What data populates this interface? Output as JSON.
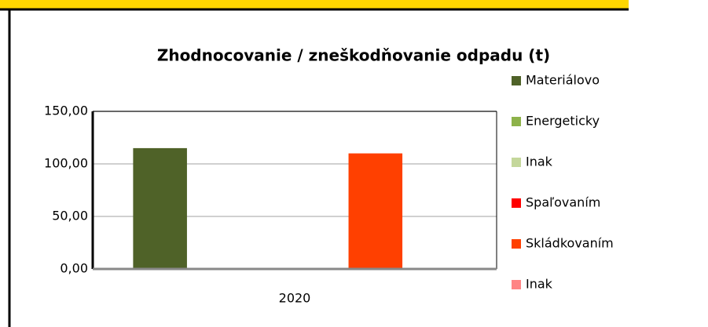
{
  "chart_data": {
    "type": "bar",
    "title": "Zhodnocovanie  / zneškodňovanie odpadu (t)",
    "categories": [
      "2020"
    ],
    "series": [
      {
        "name": "Materiálovo",
        "color": "#4f6228",
        "values": [
          115
        ]
      },
      {
        "name": "Energeticky",
        "color": "#8db24a",
        "values": [
          0
        ]
      },
      {
        "name": "Inak",
        "color": "#c4d79b",
        "values": [
          0
        ]
      },
      {
        "name": "Spaľovaním",
        "color": "#ff0000",
        "values": [
          0
        ]
      },
      {
        "name": "Skládkovaním",
        "color": "#ff4000",
        "values": [
          110
        ]
      },
      {
        "name": "Inak",
        "color": "#ff8585",
        "values": [
          0
        ]
      }
    ],
    "ylim": [
      0,
      150
    ],
    "yticks": [
      {
        "value": 0,
        "label": "0,00"
      },
      {
        "value": 50,
        "label": "50,00"
      },
      {
        "value": 100,
        "label": "100,00"
      },
      {
        "value": 150,
        "label": "150,00"
      }
    ],
    "grid": true,
    "legend": "right"
  }
}
